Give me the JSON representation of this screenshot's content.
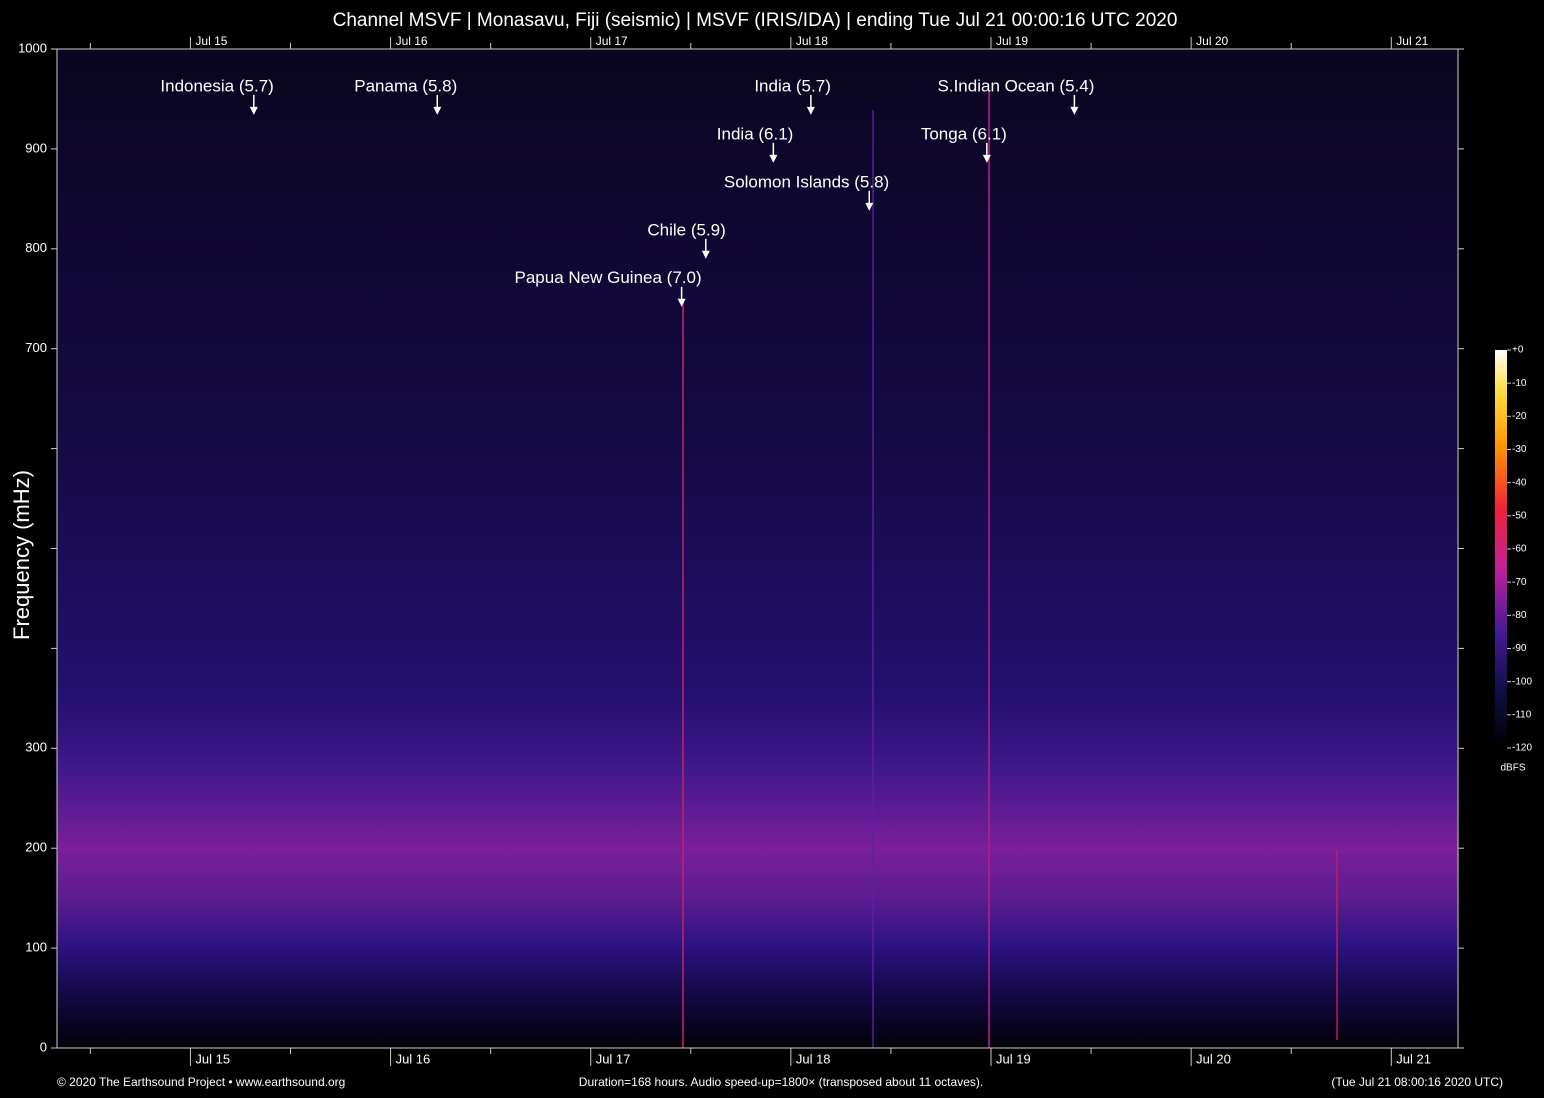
{
  "chart_data": {
    "type": "spectrogram",
    "title": "Channel MSVF | Monasavu, Fiji (seismic) | MSVF (IRIS/IDA) | ending Tue Jul 21 00:00:16 UTC 2020",
    "ylabel": "Frequency (mHz)",
    "ylim": [
      0,
      1000
    ],
    "yticks": [
      0,
      100,
      200,
      300,
      700,
      800,
      900,
      1000
    ],
    "yminorticks": [
      400,
      500,
      600
    ],
    "xlim": [
      0,
      168
    ],
    "xticks": [
      {
        "value": 16,
        "label": "Jul 15"
      },
      {
        "value": 40,
        "label": "Jul 16"
      },
      {
        "value": 64,
        "label": "Jul 17"
      },
      {
        "value": 88,
        "label": "Jul 18"
      },
      {
        "value": 112,
        "label": "Jul 19"
      },
      {
        "value": 136,
        "label": "Jul 20"
      },
      {
        "value": 160,
        "label": "Jul 21"
      }
    ],
    "xminorticks": [
      4,
      28,
      52,
      76,
      100,
      124,
      148
    ],
    "annotations": [
      {
        "text": "Indonesia (5.7)",
        "x": 23.6,
        "y": 934
      },
      {
        "text": "Panama (5.8)",
        "x": 45.6,
        "y": 934
      },
      {
        "text": "India (5.7)",
        "x": 90.4,
        "y": 934
      },
      {
        "text": "S.Indian Ocean (5.4)",
        "x": 122.0,
        "y": 934
      },
      {
        "text": "India (6.1)",
        "x": 85.9,
        "y": 886
      },
      {
        "text": "Tonga (6.1)",
        "x": 111.5,
        "y": 886
      },
      {
        "text": "Solomon Islands (5.8)",
        "x": 97.4,
        "y": 838
      },
      {
        "text": "Chile (5.9)",
        "x": 77.8,
        "y": 790
      },
      {
        "text": "Papua New Guinea (7.0)",
        "x": 74.9,
        "y": 742
      }
    ],
    "colorbar": {
      "label": "dBFS",
      "lim": [
        -120,
        0
      ],
      "ticks": [
        {
          "value": 0,
          "label": "+0"
        },
        -10,
        -20,
        -30,
        -40,
        -50,
        -60,
        -70,
        -80,
        -90,
        -100,
        -110,
        -120
      ]
    },
    "footer_left": "© 2020 The Earthsound Project • www.earthsound.org",
    "footer_center": "Duration=168 hours. Audio speed-up=1800× (transposed about 11 octaves).",
    "footer_right": "(Tue Jul 21 08:00:16 2020 UTC)"
  }
}
